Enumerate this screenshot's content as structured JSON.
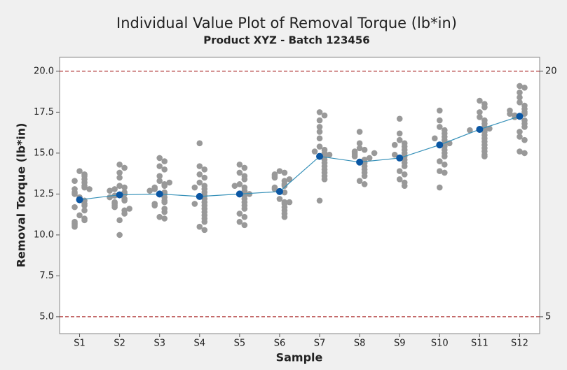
{
  "chart_data": {
    "type": "individual_value",
    "title": "Individual Value Plot of Removal Torque (lb*in)",
    "subtitle": "Product XYZ - Batch 123456",
    "x_label": "Sample",
    "y_label": "Removal Torque (lb*in)",
    "categories": [
      "S1",
      "S2",
      "S3",
      "S4",
      "S5",
      "S6",
      "S7",
      "S8",
      "S9",
      "S10",
      "S11",
      "S12"
    ],
    "points": [
      [
        13.9,
        13.7,
        13.6,
        13.4,
        13.2,
        13.0,
        12.9,
        12.8,
        12.8,
        12.6,
        12.3,
        12.1,
        11.9,
        11.8,
        11.7,
        11.5,
        11.2,
        11.0,
        10.9,
        10.8,
        10.7,
        10.6,
        10.5,
        12.5,
        13.3
      ],
      [
        14.3,
        14.1,
        13.8,
        13.5,
        13.0,
        12.9,
        12.8,
        12.6,
        12.5,
        12.4,
        12.2,
        12.1,
        12.0,
        11.9,
        11.8,
        11.7,
        11.5,
        11.3,
        10.9,
        10.0,
        12.7,
        11.6,
        12.3
      ],
      [
        14.7,
        14.5,
        14.2,
        14.0,
        13.6,
        13.3,
        13.1,
        13.0,
        12.9,
        12.8,
        12.6,
        12.5,
        12.3,
        12.1,
        12.0,
        11.9,
        11.8,
        11.6,
        11.4,
        11.1,
        11.0,
        12.7,
        13.2
      ],
      [
        15.6,
        14.2,
        14.0,
        13.7,
        13.5,
        13.2,
        13.0,
        12.8,
        12.6,
        12.4,
        12.2,
        12.0,
        11.8,
        11.6,
        11.4,
        11.2,
        11.0,
        10.8,
        10.5,
        10.3,
        11.9,
        12.9
      ],
      [
        14.3,
        14.1,
        13.8,
        13.6,
        13.4,
        13.1,
        12.9,
        12.7,
        12.6,
        12.4,
        12.2,
        12.0,
        11.8,
        11.6,
        11.3,
        11.1,
        10.8,
        10.6,
        12.5,
        13.0
      ],
      [
        13.9,
        13.8,
        13.7,
        13.6,
        13.5,
        13.3,
        13.1,
        13.0,
        12.9,
        12.8,
        12.6,
        12.2,
        12.0,
        11.9,
        11.7,
        11.5,
        11.3,
        11.1,
        13.4,
        12.0
      ],
      [
        17.5,
        17.3,
        17.0,
        16.6,
        16.3,
        15.9,
        15.4,
        15.2,
        15.0,
        14.8,
        14.6,
        14.4,
        14.2,
        14.0,
        13.8,
        13.6,
        13.4,
        12.1,
        15.1,
        14.9
      ],
      [
        16.3,
        15.6,
        15.3,
        15.2,
        15.1,
        15.0,
        14.9,
        14.8,
        14.6,
        14.4,
        14.2,
        14.0,
        13.8,
        13.6,
        13.3,
        13.1,
        14.7,
        15.0
      ],
      [
        17.1,
        16.2,
        15.8,
        15.6,
        15.4,
        15.2,
        15.0,
        14.8,
        14.6,
        14.4,
        14.2,
        13.9,
        13.7,
        13.4,
        13.2,
        13.0,
        14.9,
        15.5
      ],
      [
        17.6,
        17.0,
        16.6,
        16.4,
        16.2,
        16.0,
        15.8,
        15.6,
        15.4,
        15.2,
        15.0,
        14.8,
        14.5,
        14.3,
        13.9,
        13.8,
        12.9,
        15.9,
        15.6
      ],
      [
        18.2,
        18.0,
        17.8,
        17.5,
        17.2,
        17.0,
        16.8,
        16.6,
        16.4,
        16.3,
        16.1,
        15.9,
        15.7,
        15.5,
        15.3,
        15.1,
        14.9,
        14.8,
        16.5,
        16.4
      ],
      [
        19.1,
        19.0,
        18.7,
        18.4,
        18.1,
        17.9,
        17.7,
        17.5,
        17.4,
        17.3,
        17.2,
        17.0,
        16.8,
        16.6,
        16.3,
        16.0,
        15.8,
        15.1,
        15.0,
        17.4,
        17.6
      ]
    ],
    "means": [
      12.15,
      12.45,
      12.5,
      12.35,
      12.5,
      12.65,
      14.8,
      14.45,
      14.7,
      15.5,
      16.45,
      17.25
    ],
    "point_color": "#999999",
    "mean_color": "#0b57a4",
    "line_color": "#3590b8",
    "reference_lines": [
      20,
      5
    ],
    "reference_color": "#a01010",
    "ylim": [
      3.97,
      20.85
    ],
    "yticks": [
      {
        "value": 5,
        "label": "5.0"
      },
      {
        "value": 7.5,
        "label": "7.5"
      },
      {
        "value": 10,
        "label": "10.0"
      },
      {
        "value": 12.5,
        "label": "12.5"
      },
      {
        "value": 15,
        "label": "15.0"
      },
      {
        "value": 17.5,
        "label": "17.5"
      },
      {
        "value": 20,
        "label": "20.0"
      }
    ]
  }
}
